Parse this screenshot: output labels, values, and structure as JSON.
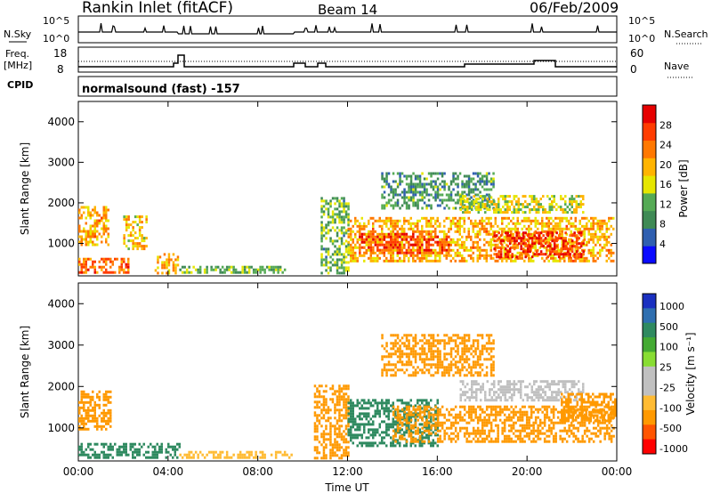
{
  "header": {
    "station": "Rankin Inlet (fitACF)",
    "beam": "Beam 14",
    "date": "06/Feb/2009"
  },
  "strips": {
    "nsky_label": "N.Sky",
    "nsky_ticks": [
      "10^5",
      "10^0"
    ],
    "nsearch_label": "N.Search",
    "nsearch_ticks": [
      "10^5",
      "10^0"
    ],
    "freq_label_1": "Freq.",
    "freq_label_2": "[MHz]",
    "freq_ticks": [
      "18",
      "8"
    ],
    "nave_label": "Nave",
    "nave_ticks": [
      "60",
      "0"
    ],
    "cpid_label": "CPID",
    "cpid_text": "normalsound (fast) -157"
  },
  "colors": {
    "power_scale": [
      "#0a0aff",
      "#2f5fb0",
      "#3f8a55",
      "#55aa55",
      "#e6e600",
      "#ffb400",
      "#ff7800",
      "#ff3c00",
      "#e60000"
    ],
    "velocity_scale": [
      "#ff0000",
      "#ff5500",
      "#ff9900",
      "#ffbb33",
      "#c0c0c0",
      "#c0c0c0",
      "#88dd33",
      "#44aa33",
      "#2f8a60",
      "#2f6fb0",
      "#1a30c0"
    ]
  },
  "chart_data": [
    {
      "type": "heatmap",
      "name": "power-panel",
      "ylabel": "Slant Range [km]",
      "xlabel": "",
      "x_ticks": [
        "00:00",
        "04:00",
        "08:00",
        "12:00",
        "16:00",
        "20:00",
        "00:00"
      ],
      "y_ticks": [
        1000,
        2000,
        3000,
        4000
      ],
      "ylim": [
        200,
        4500
      ],
      "colorbar_label": "Power [dB]",
      "colorbar_ticks": [
        4,
        8,
        12,
        16,
        20,
        24,
        28
      ],
      "regions": [
        {
          "t0": 0.0,
          "t1": 1.3,
          "r0": 1000,
          "r1": 1950,
          "level": 20
        },
        {
          "t0": 0.0,
          "t1": 2.2,
          "r0": 250,
          "r1": 650,
          "level": 24
        },
        {
          "t0": 2.0,
          "t1": 3.0,
          "r0": 900,
          "r1": 1700,
          "level": 18
        },
        {
          "t0": 3.4,
          "t1": 4.4,
          "r0": 300,
          "r1": 800,
          "level": 20
        },
        {
          "t0": 4.5,
          "t1": 9.2,
          "r0": 250,
          "r1": 500,
          "level": 12
        },
        {
          "t0": 10.8,
          "t1": 12.0,
          "r0": 300,
          "r1": 2200,
          "level": 12
        },
        {
          "t0": 12.0,
          "t1": 24.0,
          "r0": 600,
          "r1": 1700,
          "level": 20
        },
        {
          "t0": 12.5,
          "t1": 16.5,
          "r0": 800,
          "r1": 1300,
          "level": 26
        },
        {
          "t0": 18.5,
          "t1": 22.5,
          "r0": 700,
          "r1": 1350,
          "level": 28
        },
        {
          "t0": 13.5,
          "t1": 18.5,
          "r0": 1900,
          "r1": 2800,
          "level": 10
        },
        {
          "t0": 17.0,
          "t1": 22.5,
          "r0": 1800,
          "r1": 2200,
          "level": 16
        }
      ]
    },
    {
      "type": "heatmap",
      "name": "velocity-panel",
      "ylabel": "Slant Range [km]",
      "xlabel": "Time UT",
      "x_ticks": [
        "00:00",
        "04:00",
        "08:00",
        "12:00",
        "16:00",
        "20:00",
        "00:00"
      ],
      "y_ticks": [
        1000,
        2000,
        3000,
        4000
      ],
      "ylim": [
        200,
        4500
      ],
      "colorbar_label": "Velocity [m s⁻¹]",
      "colorbar_ticks": [
        1000,
        500,
        100,
        25,
        -25,
        -100,
        -500,
        -1000
      ],
      "regions": [
        {
          "t0": 0.0,
          "t1": 4.5,
          "r0": 250,
          "r1": 700,
          "level": 120
        },
        {
          "t0": 0.0,
          "t1": 1.4,
          "r0": 1000,
          "r1": 1950,
          "level": -150
        },
        {
          "t0": 4.5,
          "t1": 9.5,
          "r0": 250,
          "r1": 500,
          "level": -90
        },
        {
          "t0": 10.5,
          "t1": 12.0,
          "r0": 300,
          "r1": 2100,
          "level": -120
        },
        {
          "t0": 12.0,
          "t1": 16.0,
          "r0": 600,
          "r1": 1700,
          "level": 150
        },
        {
          "t0": 14.0,
          "t1": 24.0,
          "r0": 700,
          "r1": 1600,
          "level": -300
        },
        {
          "t0": 17.0,
          "t1": 22.5,
          "r0": 1700,
          "r1": 2200,
          "level": 0
        },
        {
          "t0": 13.5,
          "t1": 18.5,
          "r0": 2300,
          "r1": 3300,
          "level": -200
        },
        {
          "t0": 21.5,
          "t1": 24.0,
          "r0": 1200,
          "r1": 1900,
          "level": -400
        }
      ]
    }
  ]
}
